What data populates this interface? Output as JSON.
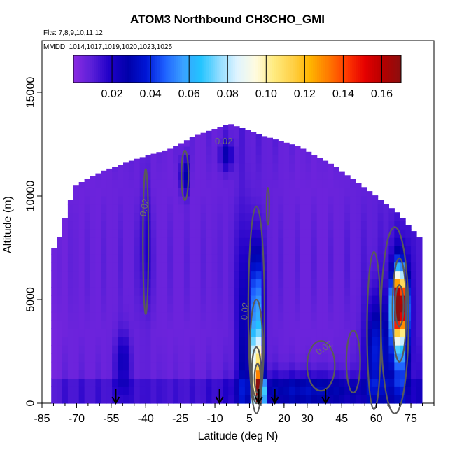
{
  "chart_data": {
    "type": "heatmap",
    "title": "ATOM3 Northbound CH3CHO_GMI",
    "subtitle_flights": "Flts: 7,8,9,10,11,12",
    "subtitle_dates": "MMDD: 1014,1017,1019,1020,1023,1025",
    "xlabel": "Latitude (deg N)",
    "ylabel": "Altitude (m)",
    "xlim": [
      -85,
      85
    ],
    "ylim": [
      0,
      17500
    ],
    "x_ticks": [
      "-85",
      "-70",
      "-55",
      "-40",
      "-25",
      "-10",
      "5",
      "20",
      "30",
      "45",
      "60",
      "75"
    ],
    "y_ticks": [
      "0",
      "5000",
      "10000",
      "15000"
    ],
    "colorbar": {
      "range": [
        0.0,
        0.17
      ],
      "tick_labels": [
        "0.02",
        "0.04",
        "0.06",
        "0.08",
        "0.10",
        "0.12",
        "0.14",
        "0.16"
      ],
      "colors": [
        "#8a2be2",
        "#5a1fd8",
        "#1f00c8",
        "#0000aa",
        "#0016d6",
        "#1e60ff",
        "#3aa0ff",
        "#22c4ff",
        "#8fdcff",
        "#dff4ff",
        "#fffbe0",
        "#ffeb80",
        "#ffd24a",
        "#ffb400",
        "#ff7a00",
        "#ff3a00",
        "#e60000",
        "#b40000",
        "#8b0f0f"
      ]
    },
    "contour_labels": [
      "0.02",
      "0.02",
      "0.02",
      "0.02"
    ],
    "flight_arrow_latitudes": [
      -53,
      -8,
      9,
      16,
      38
    ],
    "profiles": [
      {
        "lat": -80,
        "top": 7500,
        "base": 0.004
      },
      {
        "lat": -72,
        "top": 10500,
        "base": 0.006
      },
      {
        "lat": -60,
        "top": 11200,
        "base": 0.006
      },
      {
        "lat": -45,
        "top": 11800,
        "base": 0.007
      },
      {
        "lat": -30,
        "top": 12300,
        "base": 0.006
      },
      {
        "lat": -20,
        "top": 12900,
        "base": 0.006
      },
      {
        "lat": -5,
        "top": 13500,
        "base": 0.007
      },
      {
        "lat": 10,
        "top": 12900,
        "base": 0.008
      },
      {
        "lat": 25,
        "top": 12400,
        "base": 0.006
      },
      {
        "lat": 40,
        "top": 11500,
        "base": 0.006
      },
      {
        "lat": 55,
        "top": 10300,
        "base": 0.008
      },
      {
        "lat": 68,
        "top": 9200,
        "base": 0.01
      },
      {
        "lat": 79,
        "top": 7800,
        "base": 0.012
      }
    ],
    "features": [
      {
        "name": "plume-equator",
        "lat": 8,
        "alt": 4500,
        "lat_width": 2.5,
        "alt_width": 3000,
        "value": 0.055
      },
      {
        "name": "plume-equator-low",
        "lat": 8,
        "alt": 1800,
        "lat_width": 2.2,
        "alt_width": 1500,
        "value": 0.09
      },
      {
        "name": "plume-equator-surface",
        "lat": 9,
        "alt": 500,
        "lat_width": 2.0,
        "alt_width": 700,
        "value": 0.16
      },
      {
        "name": "plume-north-high",
        "lat": 70,
        "alt": 4800,
        "lat_width": 2.5,
        "alt_width": 1500,
        "value": 0.16
      },
      {
        "name": "plume-north-mid",
        "lat": 70,
        "alt": 3500,
        "lat_width": 4,
        "alt_width": 3000,
        "value": 0.05
      },
      {
        "name": "plume-north-column",
        "lat": 60,
        "alt": 2500,
        "lat_width": 5,
        "alt_width": 2500,
        "value": 0.03
      },
      {
        "name": "band-40S",
        "lat": -40,
        "alt": 7500,
        "lat_width": 1.5,
        "alt_width": 3000,
        "value": 0.02
      },
      {
        "name": "band-25S",
        "lat": -23,
        "alt": 11000,
        "lat_width": 1.5,
        "alt_width": 900,
        "value": 0.03
      },
      {
        "name": "band-lowlat",
        "lat": 2,
        "alt": 3000,
        "lat_width": 3,
        "alt_width": 6000,
        "value": 0.018
      },
      {
        "name": "band-high",
        "lat": -5,
        "alt": 12000,
        "lat_width": 3,
        "alt_width": 700,
        "value": 0.018
      },
      {
        "name": "boundary-layer",
        "lat": 30,
        "alt": 600,
        "lat_width": 25,
        "alt_width": 900,
        "value": 0.02
      },
      {
        "name": "band-15S",
        "lat": -50,
        "alt": 2000,
        "lat_width": 3,
        "alt_width": 1500,
        "value": 0.018
      }
    ],
    "contours": [
      {
        "lat": 8,
        "alt": 4500,
        "rx_deg": 3.5,
        "ry_alt": 5000
      },
      {
        "lat": 8,
        "alt": 2500,
        "rx_deg": 2.8,
        "ry_alt": 2500
      },
      {
        "lat": 8,
        "alt": 1500,
        "rx_deg": 2.0,
        "ry_alt": 1200
      },
      {
        "lat": 8.5,
        "alt": 1200,
        "rx_deg": 1.3,
        "ry_alt": 700
      },
      {
        "lat": 70,
        "alt": 4500,
        "rx_deg": 3.0,
        "ry_alt": 2500
      },
      {
        "lat": 70,
        "alt": 4700,
        "rx_deg": 1.8,
        "ry_alt": 1000
      },
      {
        "lat": 68,
        "alt": 4000,
        "rx_deg": 6.0,
        "ry_alt": 4500
      },
      {
        "lat": 59,
        "alt": 3500,
        "rx_deg": 3.0,
        "ry_alt": 3800
      },
      {
        "lat": 50,
        "alt": 2000,
        "rx_deg": 3.0,
        "ry_alt": 1500
      },
      {
        "lat": -40,
        "alt": 7800,
        "rx_deg": 1.2,
        "ry_alt": 3500
      },
      {
        "lat": -23,
        "alt": 11000,
        "rx_deg": 1.5,
        "ry_alt": 1200
      },
      {
        "lat": 13,
        "alt": 9500,
        "rx_deg": 0.6,
        "ry_alt": 900
      },
      {
        "lat": 36,
        "alt": 1800,
        "rx_deg": 6.0,
        "ry_alt": 1200
      }
    ]
  }
}
